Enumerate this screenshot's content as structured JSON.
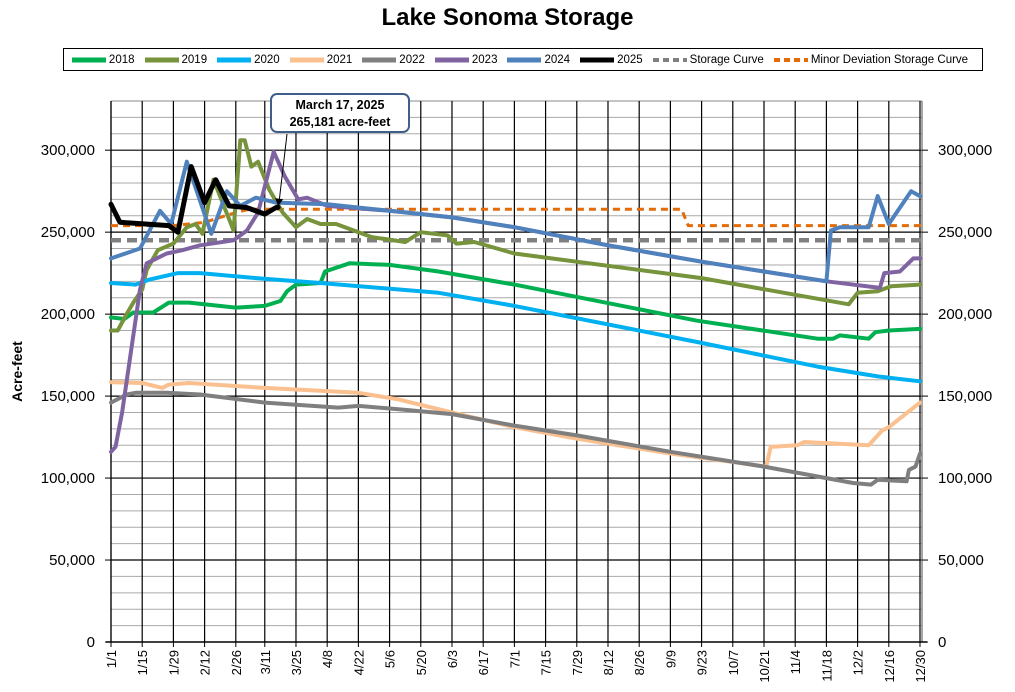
{
  "chart_data": {
    "type": "line",
    "title": "Lake Sonoma Storage",
    "xlabel": "",
    "ylabel": "Acre-feet",
    "ylim": [
      0,
      330000
    ],
    "y_ticks": [
      0,
      50000,
      100000,
      150000,
      200000,
      250000,
      300000
    ],
    "y_tick_labels": [
      "0",
      "50,000",
      "100,000",
      "150,000",
      "200,000",
      "250,000",
      "300,000"
    ],
    "y_minor_step": 10000,
    "secondary_y_axis": true,
    "grid": true,
    "legend_position": "top",
    "x_tick_labels": [
      "1/1",
      "1/15",
      "1/29",
      "2/12",
      "2/26",
      "3/11",
      "3/25",
      "4/8",
      "4/22",
      "5/6",
      "5/20",
      "6/3",
      "6/17",
      "7/1",
      "7/15",
      "7/29",
      "8/12",
      "8/26",
      "9/9",
      "9/23",
      "10/7",
      "10/21",
      "11/4",
      "11/18",
      "12/2",
      "12/16",
      "12/30"
    ],
    "annotation": {
      "line1": "March 17, 2025",
      "line2": "265,181 acre-feet",
      "date": "3/17",
      "value": 265181
    },
    "series": [
      {
        "name": "2018",
        "color": "#00b050",
        "dash": false,
        "points": [
          [
            "1/1",
            198000
          ],
          [
            "1/7",
            197000
          ],
          [
            "1/11",
            201000
          ],
          [
            "1/20",
            201000
          ],
          [
            "1/27",
            207000
          ],
          [
            "2/5",
            207000
          ],
          [
            "2/26",
            204000
          ],
          [
            "3/11",
            205000
          ],
          [
            "3/18",
            208000
          ],
          [
            "3/21",
            214000
          ],
          [
            "3/25",
            218000
          ],
          [
            "4/5",
            219000
          ],
          [
            "4/7",
            226000
          ],
          [
            "4/18",
            231000
          ],
          [
            "5/6",
            230000
          ],
          [
            "5/28",
            226000
          ],
          [
            "7/1",
            218000
          ],
          [
            "9/21",
            196000
          ],
          [
            "11/14",
            185000
          ],
          [
            "11/21",
            185000
          ],
          [
            "11/24",
            187000
          ],
          [
            "12/7",
            185000
          ],
          [
            "12/10",
            189000
          ],
          [
            "12/16",
            190000
          ],
          [
            "12/30",
            191000
          ]
        ]
      },
      {
        "name": "2019",
        "color": "#77933c",
        "dash": false,
        "points": [
          [
            "1/1",
            190000
          ],
          [
            "1/4",
            190000
          ],
          [
            "1/8",
            200000
          ],
          [
            "1/11",
            207000
          ],
          [
            "1/15",
            215000
          ],
          [
            "1/17",
            227000
          ],
          [
            "1/22",
            239000
          ],
          [
            "1/29",
            243000
          ],
          [
            "2/4",
            253000
          ],
          [
            "2/8",
            255000
          ],
          [
            "2/11",
            249000
          ],
          [
            "2/16",
            282000
          ],
          [
            "2/25",
            251000
          ],
          [
            "2/28",
            306000
          ],
          [
            "3/2",
            306000
          ],
          [
            "3/5",
            290000
          ],
          [
            "3/8",
            293000
          ],
          [
            "3/13",
            276000
          ],
          [
            "3/19",
            262000
          ],
          [
            "3/25",
            253000
          ],
          [
            "3/30",
            258000
          ],
          [
            "4/5",
            255000
          ],
          [
            "4/12",
            255000
          ],
          [
            "4/28",
            247000
          ],
          [
            "5/13",
            244000
          ],
          [
            "5/20",
            250000
          ],
          [
            "6/1",
            248000
          ],
          [
            "6/5",
            243000
          ],
          [
            "6/13",
            244000
          ],
          [
            "7/1",
            237000
          ],
          [
            "9/23",
            222000
          ],
          [
            "11/28",
            206000
          ],
          [
            "12/2",
            213000
          ],
          [
            "12/11",
            214000
          ],
          [
            "12/17",
            217000
          ],
          [
            "12/30",
            218000
          ]
        ]
      },
      {
        "name": "2020",
        "color": "#00b0f0",
        "dash": false,
        "points": [
          [
            "1/1",
            219000
          ],
          [
            "1/12",
            218000
          ],
          [
            "1/18",
            221000
          ],
          [
            "1/31",
            225000
          ],
          [
            "2/10",
            225000
          ],
          [
            "3/7",
            222000
          ],
          [
            "4/5",
            219000
          ],
          [
            "5/28",
            213000
          ],
          [
            "7/1",
            205000
          ],
          [
            "9/21",
            183000
          ],
          [
            "11/14",
            168000
          ],
          [
            "12/11",
            162000
          ],
          [
            "12/30",
            159000
          ]
        ]
      },
      {
        "name": "2021",
        "color": "#fac08f",
        "dash": false,
        "points": [
          [
            "1/1",
            158500
          ],
          [
            "1/15",
            158000
          ],
          [
            "1/24",
            155000
          ],
          [
            "1/27",
            157000
          ],
          [
            "2/5",
            158000
          ],
          [
            "3/11",
            155000
          ],
          [
            "4/22",
            152000
          ],
          [
            "5/10",
            148000
          ],
          [
            "6/3",
            140000
          ],
          [
            "7/1",
            131000
          ],
          [
            "7/29",
            124000
          ],
          [
            "9/9",
            115000
          ],
          [
            "10/22",
            107000
          ],
          [
            "10/24",
            119000
          ],
          [
            "11/5",
            120000
          ],
          [
            "11/8",
            122000
          ],
          [
            "12/7",
            120000
          ],
          [
            "12/13",
            129000
          ],
          [
            "12/16",
            131000
          ],
          [
            "12/30",
            146000
          ]
        ]
      },
      {
        "name": "2022",
        "color": "#7f7f7f",
        "dash": false,
        "points": [
          [
            "1/1",
            146000
          ],
          [
            "1/8",
            151000
          ],
          [
            "1/12",
            152000
          ],
          [
            "1/26",
            152000
          ],
          [
            "2/10",
            151000
          ],
          [
            "3/11",
            146000
          ],
          [
            "4/13",
            143000
          ],
          [
            "4/22",
            144000
          ],
          [
            "5/10",
            142000
          ],
          [
            "6/3",
            139000
          ],
          [
            "7/1",
            132000
          ],
          [
            "7/29",
            126000
          ],
          [
            "9/9",
            116000
          ],
          [
            "10/21",
            107000
          ],
          [
            "11/30",
            97000
          ],
          [
            "12/8",
            96000
          ],
          [
            "12/11",
            99000
          ],
          [
            "12/24",
            98000
          ],
          [
            "12/25",
            105000
          ],
          [
            "12/28",
            107000
          ],
          [
            "12/30",
            115000
          ]
        ]
      },
      {
        "name": "2023",
        "color": "#8064a2",
        "dash": false,
        "points": [
          [
            "1/1",
            116000
          ],
          [
            "1/3",
            119000
          ],
          [
            "1/6",
            140000
          ],
          [
            "1/14",
            215000
          ],
          [
            "1/17",
            231000
          ],
          [
            "1/26",
            237000
          ],
          [
            "2/2",
            239000
          ],
          [
            "2/10",
            242000
          ],
          [
            "2/25",
            245000
          ],
          [
            "3/3",
            251000
          ],
          [
            "3/8",
            262000
          ],
          [
            "3/15",
            299000
          ],
          [
            "3/20",
            284000
          ],
          [
            "3/26",
            270000
          ],
          [
            "3/30",
            271000
          ],
          [
            "4/8",
            266000
          ],
          [
            "5/6",
            263000
          ],
          [
            "6/3",
            259000
          ],
          [
            "7/1",
            253000
          ],
          [
            "8/12",
            242000
          ],
          [
            "9/23",
            232000
          ],
          [
            "10/21",
            226000
          ],
          [
            "11/18",
            220000
          ],
          [
            "12/12",
            216000
          ],
          [
            "12/14",
            225000
          ],
          [
            "12/21",
            226000
          ],
          [
            "12/27",
            234000
          ],
          [
            "12/30",
            234000
          ]
        ]
      },
      {
        "name": "2024",
        "color": "#4f81bd",
        "dash": false,
        "points": [
          [
            "1/1",
            234000
          ],
          [
            "1/14",
            240000
          ],
          [
            "1/23",
            263000
          ],
          [
            "1/28",
            255000
          ],
          [
            "2/4",
            293000
          ],
          [
            "2/10",
            269000
          ],
          [
            "2/15",
            249000
          ],
          [
            "2/22",
            275000
          ],
          [
            "2/28",
            266000
          ],
          [
            "3/7",
            271000
          ],
          [
            "3/16",
            268000
          ],
          [
            "4/8",
            267000
          ],
          [
            "5/6",
            263000
          ],
          [
            "6/3",
            259000
          ],
          [
            "7/1",
            253000
          ],
          [
            "8/12",
            242000
          ],
          [
            "9/23",
            232000
          ],
          [
            "10/21",
            226000
          ],
          [
            "11/18",
            220000
          ],
          [
            "11/20",
            251000
          ],
          [
            "11/24",
            253000
          ],
          [
            "12/7",
            253000
          ],
          [
            "12/11",
            272000
          ],
          [
            "12/16",
            255000
          ],
          [
            "12/26",
            275000
          ],
          [
            "12/30",
            272000
          ]
        ]
      },
      {
        "name": "2025",
        "color": "#000000",
        "dash": false,
        "points": [
          [
            "1/1",
            267000
          ],
          [
            "1/5",
            256000
          ],
          [
            "1/27",
            254000
          ],
          [
            "1/31",
            250000
          ],
          [
            "2/6",
            290000
          ],
          [
            "2/12",
            268000
          ],
          [
            "2/17",
            282000
          ],
          [
            "2/23",
            266000
          ],
          [
            "3/3",
            265000
          ],
          [
            "3/11",
            261000
          ],
          [
            "3/16",
            265000
          ],
          [
            "3/17",
            265181
          ]
        ]
      },
      {
        "name": "Storage Curve",
        "color": "#808080",
        "dash": true,
        "points": [
          [
            "1/1",
            245000
          ],
          [
            "12/31",
            245000
          ]
        ]
      },
      {
        "name": "Minor Deviation Storage Curve",
        "color": "#e36c09",
        "dash": true,
        "points": [
          [
            "1/1",
            254000
          ],
          [
            "1/29",
            254000
          ],
          [
            "2/12",
            256000
          ],
          [
            "2/26",
            262000
          ],
          [
            "3/4",
            264000
          ],
          [
            "9/14",
            264000
          ],
          [
            "9/17",
            254000
          ],
          [
            "12/31",
            254000
          ]
        ]
      }
    ]
  }
}
